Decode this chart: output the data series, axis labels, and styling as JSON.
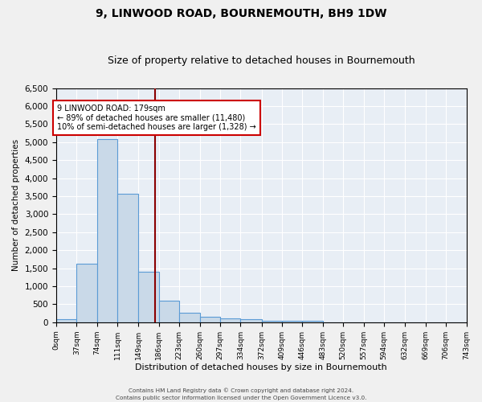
{
  "title": "9, LINWOOD ROAD, BOURNEMOUTH, BH9 1DW",
  "subtitle": "Size of property relative to detached houses in Bournemouth",
  "xlabel": "Distribution of detached houses by size in Bournemouth",
  "ylabel": "Number of detached properties",
  "bin_edges": [
    0,
    37,
    74,
    111,
    149,
    186,
    223,
    260,
    297,
    334,
    372,
    409,
    446,
    483,
    520,
    557,
    594,
    632,
    669,
    706,
    743
  ],
  "bar_heights": [
    75,
    1625,
    5075,
    3575,
    1400,
    600,
    275,
    150,
    100,
    75,
    50,
    50,
    50,
    0,
    0,
    0,
    0,
    0,
    0,
    0
  ],
  "bar_color": "#c9d9e8",
  "bar_edge_color": "#5b9bd5",
  "vline_x": 179,
  "vline_color": "#8b0000",
  "annotation_text": "9 LINWOOD ROAD: 179sqm\n← 89% of detached houses are smaller (11,480)\n10% of semi-detached houses are larger (1,328) →",
  "annotation_box_color": "#ffffff",
  "annotation_box_edge_color": "#cc0000",
  "ylim": [
    0,
    6500
  ],
  "yticks": [
    0,
    500,
    1000,
    1500,
    2000,
    2500,
    3000,
    3500,
    4000,
    4500,
    5000,
    5500,
    6000,
    6500
  ],
  "background_color": "#e8eef5",
  "grid_color": "#ffffff",
  "fig_background": "#f0f0f0",
  "title_fontsize": 10,
  "subtitle_fontsize": 9,
  "footer_line1": "Contains HM Land Registry data © Crown copyright and database right 2024.",
  "footer_line2": "Contains public sector information licensed under the Open Government Licence v3.0."
}
